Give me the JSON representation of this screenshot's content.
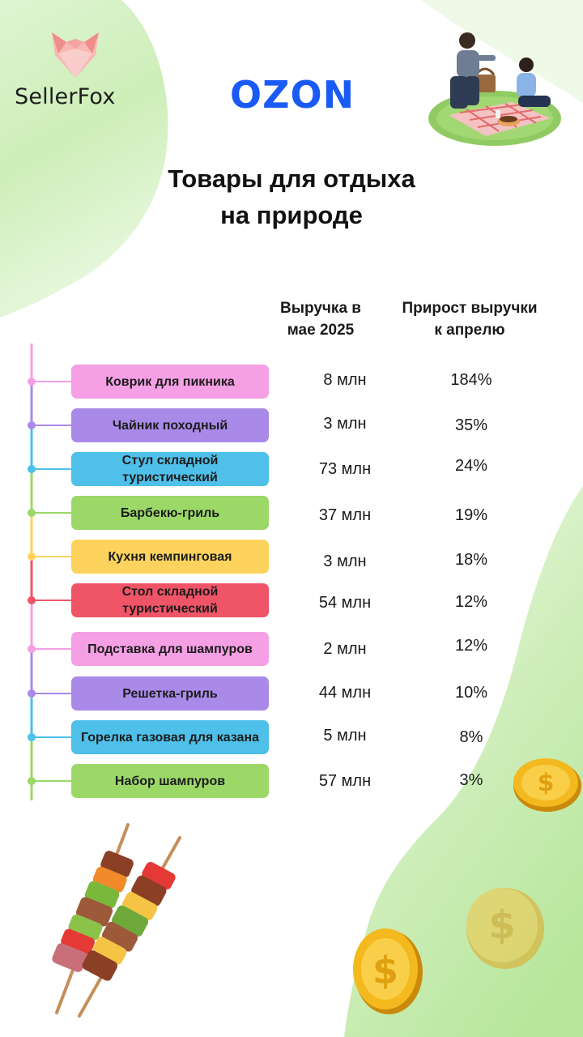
{
  "brand": {
    "name": "SellerFox",
    "logo_icon": "fox-head-icon"
  },
  "marketplace": "OZON",
  "title_lines": [
    "Товары для отдыха",
    "на природе"
  ],
  "columns": {
    "revenue": [
      "Выручка в",
      "мае 2025"
    ],
    "growth": [
      "Прирост выручки",
      "к апрелю"
    ]
  },
  "items": [
    {
      "name": "Коврик для пикника",
      "revenue": "8 млн",
      "growth": "184%",
      "color": "#f59fe4"
    },
    {
      "name": "Чайник походный",
      "revenue": "3 млн",
      "growth": "35%",
      "color": "#a98ae8"
    },
    {
      "name": "Стул складной туристический",
      "revenue": "73 млн",
      "growth": "24%",
      "color": "#4ec0e9"
    },
    {
      "name": "Барбекю-гриль",
      "revenue": "37 млн",
      "growth": "19%",
      "color": "#9bd868"
    },
    {
      "name": "Кухня кемпинговая",
      "revenue": "3 млн",
      "growth": "18%",
      "color": "#fdd35e"
    },
    {
      "name": "Стол складной туристический",
      "revenue": "54 млн",
      "growth": "12%",
      "color": "#ef5467"
    },
    {
      "name": "Подставка для шампуров",
      "revenue": "2 млн",
      "growth": "12%",
      "color": "#f59fe4"
    },
    {
      "name": "Решетка-гриль",
      "revenue": "44 млн",
      "growth": "10%",
      "color": "#a98ae8"
    },
    {
      "name": "Горелка газовая для казана",
      "revenue": "5 млн",
      "growth": "8%",
      "color": "#4ec0e9"
    },
    {
      "name": "Набор шампуров",
      "revenue": "57 млн",
      "growth": "3%",
      "color": "#9bd868"
    }
  ],
  "decorations": [
    "picnic-couple-illustration",
    "shashlik-skewers-illustration",
    "gold-coin-icon"
  ],
  "colors": {
    "accent_green": "#c6f0ad",
    "ozon_blue": "#1a5bf5",
    "coin_gold": "#f0b625"
  }
}
